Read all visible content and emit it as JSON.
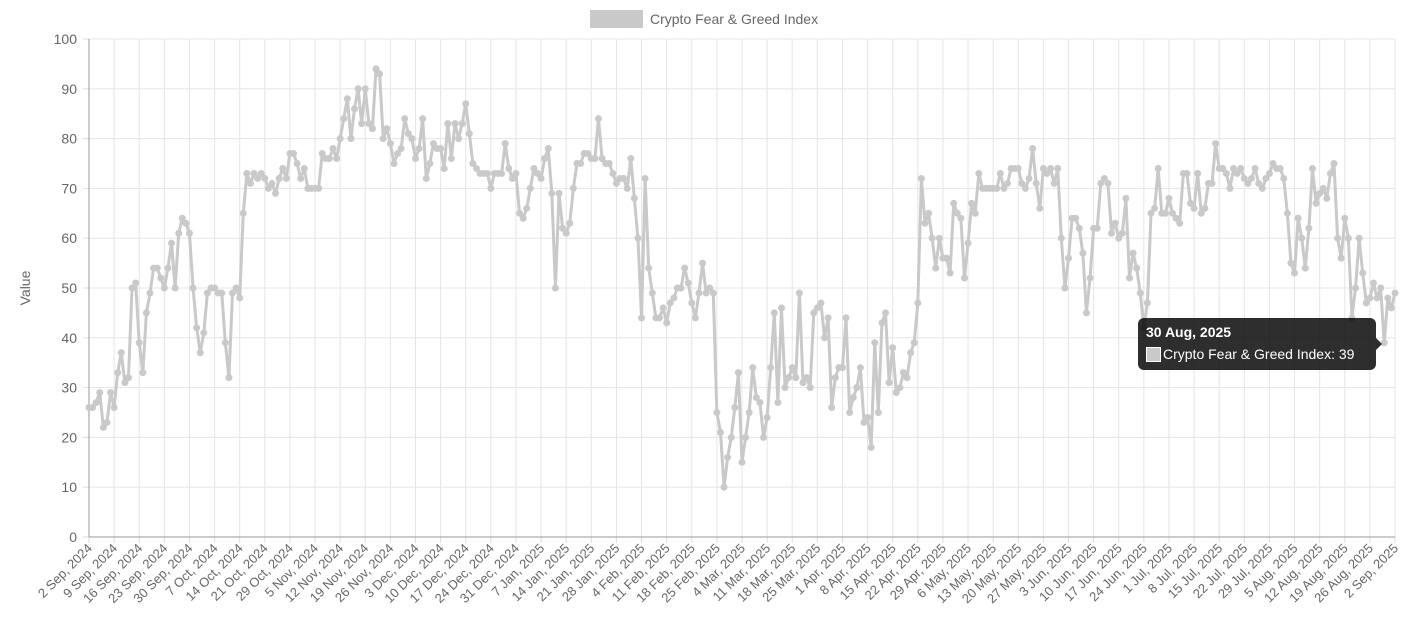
{
  "chart_data": {
    "type": "line",
    "y_label": "Value",
    "legend": "top",
    "grid": true,
    "ylim": [
      0,
      100
    ],
    "yticks": [
      0,
      10,
      20,
      30,
      40,
      50,
      60,
      70,
      80,
      90,
      100
    ],
    "tooltip": {
      "title": "30 Aug, 2025",
      "text": "Crypto Fear & Greed Index: 39"
    },
    "categories": [
      "2 Sep, 2024",
      null,
      null,
      null,
      null,
      null,
      null,
      "9 Sep, 2024",
      null,
      null,
      null,
      null,
      null,
      null,
      "16 Sep, 2024",
      null,
      null,
      null,
      null,
      null,
      null,
      "23 Sep, 2024",
      null,
      null,
      null,
      null,
      null,
      null,
      "30 Sep, 2024",
      null,
      null,
      null,
      null,
      null,
      null,
      "7 Oct, 2024",
      null,
      null,
      null,
      null,
      null,
      null,
      "14 Oct, 2024",
      null,
      null,
      null,
      null,
      null,
      null,
      "21 Oct, 2024",
      null,
      null,
      null,
      null,
      null,
      null,
      "29 Oct, 2024",
      null,
      null,
      null,
      null,
      null,
      null,
      "5 Nov, 2024",
      null,
      null,
      null,
      null,
      null,
      null,
      "12 Nov, 2024",
      null,
      null,
      null,
      null,
      null,
      null,
      "19 Nov, 2024",
      null,
      null,
      null,
      null,
      null,
      null,
      "26 Nov, 2024",
      null,
      null,
      null,
      null,
      null,
      null,
      "3 Dec, 2024",
      null,
      null,
      null,
      null,
      null,
      null,
      "10 Dec, 2024",
      null,
      null,
      null,
      null,
      null,
      null,
      "17 Dec, 2024",
      null,
      null,
      null,
      null,
      null,
      null,
      "24 Dec, 2024",
      null,
      null,
      null,
      null,
      null,
      null,
      "31 Dec, 2024",
      null,
      null,
      null,
      null,
      null,
      null,
      "7 Jan, 2025",
      null,
      null,
      null,
      null,
      null,
      null,
      "14 Jan, 2025",
      null,
      null,
      null,
      null,
      null,
      null,
      "21 Jan, 2025",
      null,
      null,
      null,
      null,
      null,
      null,
      "28 Jan, 2025",
      null,
      null,
      null,
      null,
      null,
      null,
      "4 Feb, 2025",
      null,
      null,
      null,
      null,
      null,
      null,
      "11 Feb, 2025",
      null,
      null,
      null,
      null,
      null,
      null,
      "18 Feb, 2025",
      null,
      null,
      null,
      null,
      null,
      null,
      "25 Feb, 2025",
      null,
      null,
      null,
      null,
      null,
      null,
      "4 Mar, 2025",
      null,
      null,
      null,
      null,
      null,
      null,
      "11 Mar, 2025",
      null,
      null,
      null,
      null,
      null,
      null,
      "18 Mar, 2025",
      null,
      null,
      null,
      null,
      null,
      null,
      "25 Mar, 2025",
      null,
      null,
      null,
      null,
      null,
      null,
      "1 Apr, 2025",
      null,
      null,
      null,
      null,
      null,
      null,
      "8 Apr, 2025",
      null,
      null,
      null,
      null,
      null,
      null,
      "15 Apr, 2025",
      null,
      null,
      null,
      null,
      null,
      null,
      "22 Apr, 2025",
      null,
      null,
      null,
      null,
      null,
      null,
      "29 Apr, 2025",
      null,
      null,
      null,
      null,
      null,
      null,
      "6 May, 2025",
      null,
      null,
      null,
      null,
      null,
      null,
      "13 May, 2025",
      null,
      null,
      null,
      null,
      null,
      null,
      "20 May, 2025",
      null,
      null,
      null,
      null,
      null,
      null,
      "27 May, 2025",
      null,
      null,
      null,
      null,
      null,
      null,
      "3 Jun, 2025",
      null,
      null,
      null,
      null,
      null,
      null,
      "10 Jun, 2025",
      null,
      null,
      null,
      null,
      null,
      null,
      "17 Jun, 2025",
      null,
      null,
      null,
      null,
      null,
      null,
      "24 Jun, 2025",
      null,
      null,
      null,
      null,
      null,
      null,
      "1 Jul, 2025",
      null,
      null,
      null,
      null,
      null,
      null,
      "8 Jul, 2025",
      null,
      null,
      null,
      null,
      null,
      null,
      "15 Jul, 2025",
      null,
      null,
      null,
      null,
      null,
      null,
      "22 Jul, 2025",
      null,
      null,
      null,
      null,
      null,
      null,
      "29 Jul, 2025",
      null,
      null,
      null,
      null,
      null,
      null,
      "5 Aug, 2025",
      null,
      null,
      null,
      null,
      null,
      null,
      "12 Aug, 2025",
      null,
      null,
      null,
      null,
      null,
      null,
      "19 Aug, 2025",
      null,
      null,
      null,
      null,
      null,
      null,
      "26 Aug, 2025",
      null,
      null,
      null,
      null,
      null,
      null,
      "2 Sep, 2025"
    ],
    "series": [
      {
        "name": "Crypto Fear & Greed Index",
        "color": "#c9c9c9",
        "values": [
          26,
          26,
          27,
          29,
          22,
          23,
          29,
          26,
          33,
          37,
          31,
          32,
          50,
          51,
          39,
          33,
          45,
          49,
          54,
          54,
          52,
          50,
          54,
          59,
          50,
          61,
          64,
          63,
          61,
          50,
          42,
          37,
          41,
          49,
          50,
          50,
          49,
          49,
          39,
          32,
          49,
          50,
          48,
          65,
          73,
          71,
          73,
          72,
          73,
          72,
          70,
          71,
          69,
          72,
          74,
          72,
          77,
          77,
          75,
          72,
          74,
          70,
          70,
          70,
          70,
          77,
          76,
          76,
          78,
          76,
          80,
          84,
          88,
          80,
          86,
          90,
          83,
          90,
          83,
          82,
          94,
          93,
          80,
          82,
          79,
          75,
          77,
          78,
          84,
          81,
          80,
          76,
          78,
          84,
          72,
          75,
          79,
          78,
          78,
          74,
          83,
          76,
          83,
          80,
          83,
          87,
          81,
          75,
          74,
          73,
          73,
          73,
          70,
          73,
          73,
          73,
          79,
          74,
          72,
          73,
          65,
          64,
          66,
          70,
          74,
          73,
          72,
          76,
          78,
          69,
          50,
          69,
          62,
          61,
          63,
          70,
          75,
          75,
          77,
          77,
          76,
          76,
          84,
          76,
          75,
          75,
          73,
          71,
          72,
          72,
          70,
          76,
          68,
          60,
          44,
          72,
          54,
          49,
          44,
          44,
          46,
          43,
          47,
          48,
          50,
          50,
          54,
          51,
          47,
          44,
          49,
          55,
          49,
          50,
          49,
          25,
          21,
          10,
          16,
          20,
          26,
          33,
          15,
          20,
          25,
          34,
          28,
          27,
          20,
          24,
          34,
          45,
          27,
          46,
          30,
          32,
          34,
          32,
          49,
          31,
          32,
          30,
          45,
          46,
          47,
          40,
          44,
          26,
          32,
          34,
          34,
          44,
          25,
          28,
          30,
          34,
          23,
          24,
          18,
          39,
          25,
          43,
          45,
          31,
          38,
          29,
          30,
          33,
          32,
          37,
          39,
          47,
          72,
          63,
          65,
          60,
          54,
          60,
          56,
          56,
          53,
          67,
          65,
          64,
          52,
          59,
          67,
          65,
          73,
          70,
          70,
          70,
          70,
          70,
          73,
          70,
          71,
          74,
          74,
          74,
          71,
          70,
          72,
          78,
          71,
          66,
          74,
          73,
          74,
          71,
          74,
          60,
          50,
          56,
          64,
          64,
          62,
          57,
          45,
          52,
          62,
          62,
          71,
          72,
          71,
          61,
          63,
          60,
          61,
          68,
          52,
          57,
          54,
          49,
          42,
          47,
          65,
          66,
          74,
          65,
          65,
          68,
          65,
          64,
          63,
          73,
          73,
          67,
          66,
          73,
          65,
          66,
          71,
          71,
          79,
          74,
          74,
          73,
          70,
          74,
          73,
          74,
          72,
          71,
          72,
          74,
          71,
          70,
          72,
          73,
          75,
          74,
          74,
          72,
          65,
          55,
          53,
          64,
          60,
          54,
          62,
          74,
          67,
          69,
          70,
          68,
          73,
          75,
          60,
          56,
          64,
          60,
          44,
          50,
          60,
          53,
          47,
          48,
          51,
          48,
          50,
          39,
          48,
          46,
          49
        ]
      }
    ]
  }
}
